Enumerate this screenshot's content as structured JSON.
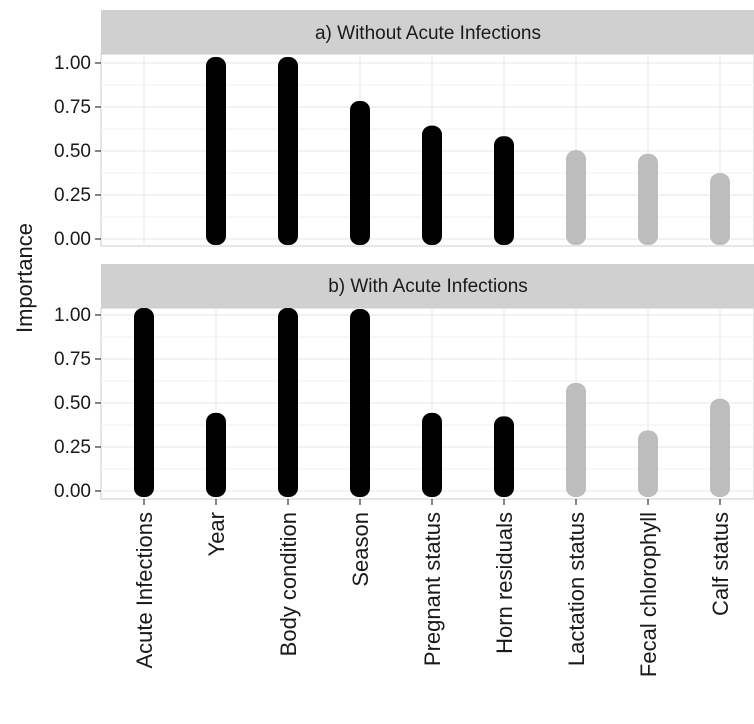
{
  "chart_data": {
    "type": "bar",
    "ylabel": "Importance",
    "xlabel": "",
    "ylim": [
      0,
      1
    ],
    "yticks": [
      "0.00",
      "0.25",
      "0.50",
      "0.75",
      "1.00"
    ],
    "categories": [
      "Acute Infections",
      "Year",
      "Body condition",
      "Season",
      "Pregnant status",
      "Horn residuals",
      "Lactation status",
      "Fecal chlorophyll",
      "Calf status"
    ],
    "colors": {
      "important": "#000000",
      "unimportant": "#bdbdbd"
    },
    "grid": true,
    "panels": [
      {
        "title": "a) Without Acute Infections",
        "values": [
          null,
          1.0,
          1.0,
          0.75,
          0.61,
          0.55,
          0.47,
          0.45,
          0.34
        ],
        "important": [
          false,
          true,
          true,
          true,
          true,
          true,
          false,
          false,
          false
        ]
      },
      {
        "title": "b) With Acute Infections",
        "values": [
          1.02,
          0.41,
          1.03,
          1.0,
          0.41,
          0.39,
          0.58,
          0.31,
          0.49
        ],
        "important": [
          true,
          true,
          true,
          true,
          true,
          true,
          false,
          false,
          false
        ]
      }
    ]
  }
}
